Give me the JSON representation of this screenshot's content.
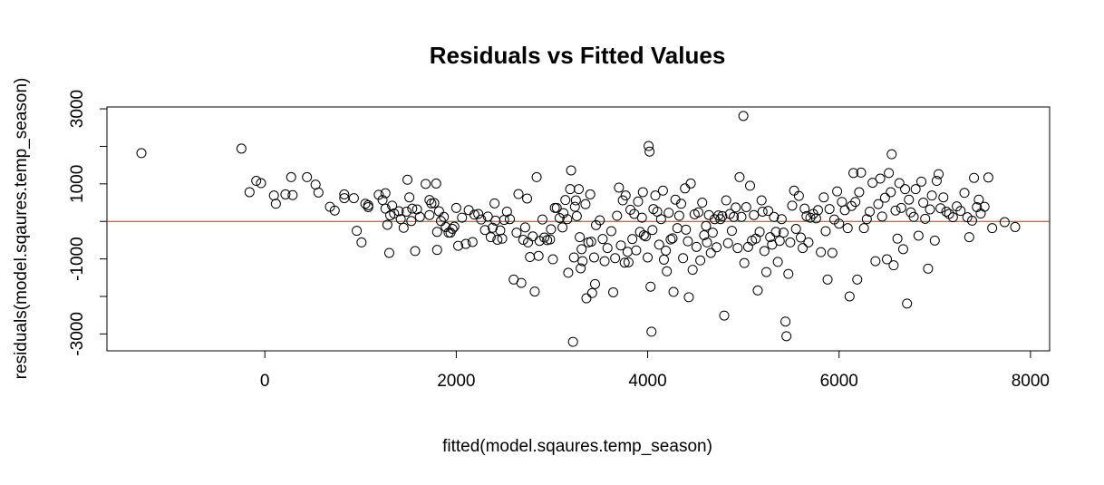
{
  "chart_data": {
    "type": "scatter",
    "title": "Residuals vs Fitted Values",
    "xlabel": "fitted(model.sqaures.temp_season)",
    "ylabel": "residuals(model.sqaures.temp_season)",
    "xlim": [
      -1650,
      8200
    ],
    "ylim": [
      -3450,
      3050
    ],
    "xticks": [
      0,
      2000,
      4000,
      6000,
      8000
    ],
    "xtick_labels": [
      "0",
      "2000",
      "4000",
      "6000",
      "8000"
    ],
    "yticks": [
      -3000,
      -1000,
      1000,
      3000
    ],
    "ytick_labels": [
      "-3000",
      "-1000",
      "1000",
      "3000"
    ],
    "yminor_ticks": [
      -2000,
      0,
      2000
    ],
    "reference_line": {
      "y": 0,
      "color": "#d62728"
    },
    "point_color": "#000000",
    "points": [
      [
        -1290,
        1820
      ],
      [
        -245,
        1940
      ],
      [
        -160,
        780
      ],
      [
        -90,
        1080
      ],
      [
        -40,
        1020
      ],
      [
        95,
        690
      ],
      [
        115,
        470
      ],
      [
        215,
        720
      ],
      [
        275,
        1180
      ],
      [
        290,
        700
      ],
      [
        440,
        1180
      ],
      [
        530,
        980
      ],
      [
        560,
        770
      ],
      [
        680,
        390
      ],
      [
        730,
        290
      ],
      [
        830,
        720
      ],
      [
        830,
        620
      ],
      [
        930,
        620
      ],
      [
        960,
        -250
      ],
      [
        1010,
        -560
      ],
      [
        1050,
        470
      ],
      [
        1080,
        380
      ],
      [
        1080,
        430
      ],
      [
        1190,
        710
      ],
      [
        1230,
        570
      ],
      [
        1260,
        750
      ],
      [
        1260,
        340
      ],
      [
        1280,
        -90
      ],
      [
        1300,
        -840
      ],
      [
        1310,
        160
      ],
      [
        1330,
        420
      ],
      [
        1350,
        210
      ],
      [
        1400,
        270
      ],
      [
        1420,
        60
      ],
      [
        1450,
        -170
      ],
      [
        1480,
        260
      ],
      [
        1490,
        1110
      ],
      [
        1510,
        640
      ],
      [
        1530,
        10
      ],
      [
        1540,
        340
      ],
      [
        1570,
        -790
      ],
      [
        1590,
        320
      ],
      [
        1620,
        120
      ],
      [
        1680,
        1000
      ],
      [
        1720,
        170
      ],
      [
        1720,
        570
      ],
      [
        1740,
        480
      ],
      [
        1770,
        490
      ],
      [
        1790,
        1010
      ],
      [
        1800,
        -760
      ],
      [
        1800,
        -280
      ],
      [
        1820,
        270
      ],
      [
        1840,
        10
      ],
      [
        1870,
        120
      ],
      [
        1890,
        -150
      ],
      [
        1920,
        -300
      ],
      [
        1940,
        -300
      ],
      [
        1960,
        -200
      ],
      [
        1980,
        -140
      ],
      [
        2000,
        360
      ],
      [
        2020,
        -650
      ],
      [
        2060,
        100
      ],
      [
        2100,
        -600
      ],
      [
        2130,
        300
      ],
      [
        2170,
        -550
      ],
      [
        2190,
        180
      ],
      [
        2230,
        200
      ],
      [
        2260,
        50
      ],
      [
        2300,
        -230
      ],
      [
        2330,
        130
      ],
      [
        2360,
        -420
      ],
      [
        2380,
        -170
      ],
      [
        2400,
        480
      ],
      [
        2410,
        20
      ],
      [
        2430,
        -490
      ],
      [
        2460,
        -240
      ],
      [
        2480,
        -460
      ],
      [
        2500,
        40
      ],
      [
        2530,
        260
      ],
      [
        2560,
        60
      ],
      [
        2600,
        -1550
      ],
      [
        2630,
        -300
      ],
      [
        2650,
        730
      ],
      [
        2680,
        -1640
      ],
      [
        2700,
        -490
      ],
      [
        2720,
        -160
      ],
      [
        2740,
        610
      ],
      [
        2750,
        -560
      ],
      [
        2770,
        -950
      ],
      [
        2800,
        -400
      ],
      [
        2820,
        -1870
      ],
      [
        2840,
        1180
      ],
      [
        2860,
        -920
      ],
      [
        2870,
        -520
      ],
      [
        2900,
        50
      ],
      [
        2920,
        -430
      ],
      [
        2950,
        -500
      ],
      [
        2980,
        -480
      ],
      [
        2990,
        -210
      ],
      [
        3010,
        -1010
      ],
      [
        3030,
        360
      ],
      [
        3050,
        360
      ],
      [
        3080,
        90
      ],
      [
        3110,
        -160
      ],
      [
        3120,
        220
      ],
      [
        3140,
        570
      ],
      [
        3160,
        60
      ],
      [
        3170,
        -1370
      ],
      [
        3190,
        860
      ],
      [
        3200,
        1360
      ],
      [
        3220,
        -3210
      ],
      [
        3230,
        -960
      ],
      [
        3240,
        390
      ],
      [
        3250,
        560
      ],
      [
        3260,
        140
      ],
      [
        3280,
        860
      ],
      [
        3290,
        -420
      ],
      [
        3300,
        -1250
      ],
      [
        3310,
        -740
      ],
      [
        3320,
        -1060
      ],
      [
        3350,
        460
      ],
      [
        3360,
        -2050
      ],
      [
        3380,
        -560
      ],
      [
        3400,
        720
      ],
      [
        3410,
        -540
      ],
      [
        3420,
        -1910
      ],
      [
        3440,
        -960
      ],
      [
        3450,
        -1670
      ],
      [
        3460,
        -100
      ],
      [
        3500,
        30
      ],
      [
        3530,
        -470
      ],
      [
        3550,
        -1060
      ],
      [
        3580,
        -710
      ],
      [
        3620,
        -260
      ],
      [
        3640,
        -1890
      ],
      [
        3660,
        -980
      ],
      [
        3680,
        150
      ],
      [
        3700,
        900
      ],
      [
        3720,
        -640
      ],
      [
        3740,
        560
      ],
      [
        3760,
        -1100
      ],
      [
        3770,
        690
      ],
      [
        3790,
        -810
      ],
      [
        3800,
        -1090
      ],
      [
        3820,
        310
      ],
      [
        3840,
        -470
      ],
      [
        3860,
        200
      ],
      [
        3880,
        -770
      ],
      [
        3900,
        530
      ],
      [
        3920,
        -280
      ],
      [
        3940,
        100
      ],
      [
        3950,
        780
      ],
      [
        3960,
        -370
      ],
      [
        3980,
        -400
      ],
      [
        4000,
        -960
      ],
      [
        4010,
        2010
      ],
      [
        4020,
        1860
      ],
      [
        4030,
        -1740
      ],
      [
        4040,
        -2940
      ],
      [
        4050,
        -230
      ],
      [
        4060,
        330
      ],
      [
        4080,
        690
      ],
      [
        4100,
        260
      ],
      [
        4120,
        -620
      ],
      [
        4140,
        60
      ],
      [
        4160,
        820
      ],
      [
        4170,
        -1020
      ],
      [
        4190,
        -780
      ],
      [
        4200,
        -1330
      ],
      [
        4220,
        230
      ],
      [
        4240,
        -480
      ],
      [
        4260,
        -450
      ],
      [
        4270,
        -1880
      ],
      [
        4290,
        580
      ],
      [
        4310,
        -180
      ],
      [
        4330,
        150
      ],
      [
        4350,
        470
      ],
      [
        4370,
        -980
      ],
      [
        4390,
        880
      ],
      [
        4400,
        -220
      ],
      [
        4420,
        -530
      ],
      [
        4430,
        -2020
      ],
      [
        4450,
        1010
      ],
      [
        4470,
        -1290
      ],
      [
        4490,
        190
      ],
      [
        4510,
        -680
      ],
      [
        4530,
        240
      ],
      [
        4550,
        -1040
      ],
      [
        4570,
        500
      ],
      [
        4590,
        -370
      ],
      [
        4610,
        -120
      ],
      [
        4620,
        -560
      ],
      [
        4640,
        170
      ],
      [
        4660,
        -840
      ],
      [
        4680,
        -300
      ],
      [
        4700,
        60
      ],
      [
        4720,
        -690
      ],
      [
        4740,
        160
      ],
      [
        4760,
        60
      ],
      [
        4780,
        140
      ],
      [
        4800,
        -2510
      ],
      [
        4820,
        560
      ],
      [
        4840,
        -580
      ],
      [
        4860,
        200
      ],
      [
        4880,
        -250
      ],
      [
        4900,
        120
      ],
      [
        4920,
        370
      ],
      [
        4940,
        -710
      ],
      [
        4960,
        1180
      ],
      [
        4980,
        120
      ],
      [
        5000,
        2810
      ],
      [
        5010,
        -1110
      ],
      [
        5030,
        380
      ],
      [
        5050,
        -680
      ],
      [
        5070,
        950
      ],
      [
        5090,
        -510
      ],
      [
        5110,
        170
      ],
      [
        5130,
        -460
      ],
      [
        5150,
        -1840
      ],
      [
        5170,
        -280
      ],
      [
        5190,
        560
      ],
      [
        5200,
        260
      ],
      [
        5220,
        -790
      ],
      [
        5240,
        -1350
      ],
      [
        5260,
        280
      ],
      [
        5280,
        -420
      ],
      [
        5300,
        -620
      ],
      [
        5320,
        120
      ],
      [
        5340,
        -280
      ],
      [
        5360,
        -1080
      ],
      [
        5380,
        -520
      ],
      [
        5400,
        60
      ],
      [
        5420,
        -300
      ],
      [
        5440,
        -2670
      ],
      [
        5450,
        -3060
      ],
      [
        5470,
        -1400
      ],
      [
        5490,
        -560
      ],
      [
        5510,
        420
      ],
      [
        5530,
        820
      ],
      [
        5550,
        -200
      ],
      [
        5580,
        680
      ],
      [
        5600,
        -430
      ],
      [
        5620,
        -710
      ],
      [
        5640,
        340
      ],
      [
        5660,
        140
      ],
      [
        5680,
        -560
      ],
      [
        5700,
        100
      ],
      [
        5730,
        200
      ],
      [
        5760,
        80
      ],
      [
        5780,
        300
      ],
      [
        5810,
        -820
      ],
      [
        5840,
        640
      ],
      [
        5860,
        -260
      ],
      [
        5880,
        -1550
      ],
      [
        5900,
        330
      ],
      [
        5930,
        -840
      ],
      [
        5950,
        50
      ],
      [
        5980,
        800
      ],
      [
        6000,
        -60
      ],
      [
        6030,
        520
      ],
      [
        6060,
        300
      ],
      [
        6090,
        -180
      ],
      [
        6110,
        -2000
      ],
      [
        6130,
        410
      ],
      [
        6150,
        1290
      ],
      [
        6170,
        520
      ],
      [
        6190,
        -1550
      ],
      [
        6210,
        780
      ],
      [
        6230,
        1300
      ],
      [
        6260,
        -180
      ],
      [
        6290,
        60
      ],
      [
        6320,
        260
      ],
      [
        6350,
        1030
      ],
      [
        6380,
        -1060
      ],
      [
        6410,
        460
      ],
      [
        6430,
        1140
      ],
      [
        6450,
        130
      ],
      [
        6480,
        630
      ],
      [
        6500,
        -1010
      ],
      [
        6520,
        1290
      ],
      [
        6540,
        780
      ],
      [
        6550,
        1790
      ],
      [
        6570,
        -1170
      ],
      [
        6590,
        290
      ],
      [
        6610,
        -460
      ],
      [
        6630,
        1020
      ],
      [
        6650,
        360
      ],
      [
        6670,
        -740
      ],
      [
        6690,
        860
      ],
      [
        6710,
        -2190
      ],
      [
        6730,
        580
      ],
      [
        6750,
        240
      ],
      [
        6780,
        120
      ],
      [
        6800,
        860
      ],
      [
        6830,
        -380
      ],
      [
        6860,
        1060
      ],
      [
        6880,
        500
      ],
      [
        6900,
        70
      ],
      [
        6930,
        -1260
      ],
      [
        6950,
        320
      ],
      [
        6970,
        690
      ],
      [
        7000,
        -510
      ],
      [
        7020,
        1080
      ],
      [
        7040,
        1260
      ],
      [
        7060,
        350
      ],
      [
        7090,
        640
      ],
      [
        7120,
        260
      ],
      [
        7150,
        200
      ],
      [
        7190,
        110
      ],
      [
        7230,
        400
      ],
      [
        7270,
        280
      ],
      [
        7310,
        760
      ],
      [
        7340,
        110
      ],
      [
        7360,
        -420
      ],
      [
        7390,
        20
      ],
      [
        7410,
        1160
      ],
      [
        7440,
        380
      ],
      [
        7460,
        580
      ],
      [
        7480,
        210
      ],
      [
        7520,
        390
      ],
      [
        7560,
        1170
      ],
      [
        7600,
        -180
      ],
      [
        7730,
        -20
      ],
      [
        7840,
        -150
      ]
    ]
  }
}
